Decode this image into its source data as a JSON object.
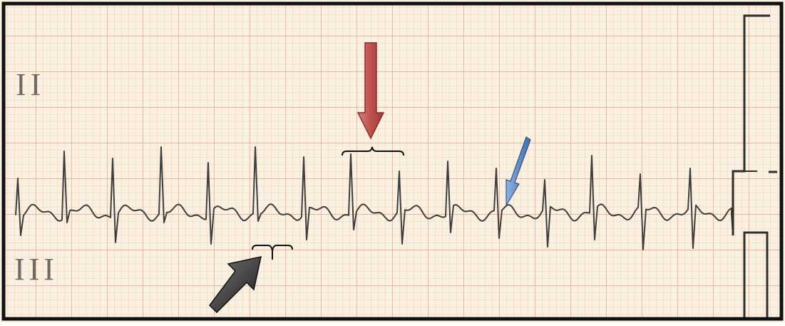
{
  "ecg": {
    "lead_upper": "II",
    "lead_lower": "III"
  },
  "annotations": {
    "red_arrow": {
      "color": "#c0504d",
      "icon": "down-arrow-icon"
    },
    "blue_arrow": {
      "color": "#4f81bd",
      "icon": "diagonal-arrow-icon"
    },
    "black_arrow": {
      "color": "#3a3a3a",
      "icon": "diagonal-arrow-icon"
    }
  },
  "colors": {
    "paper": "#fbf1e2",
    "grid_minor": "#f2c9a8",
    "grid_major": "#e7a180",
    "trace": "#3e3e3e",
    "border": "#111111"
  }
}
